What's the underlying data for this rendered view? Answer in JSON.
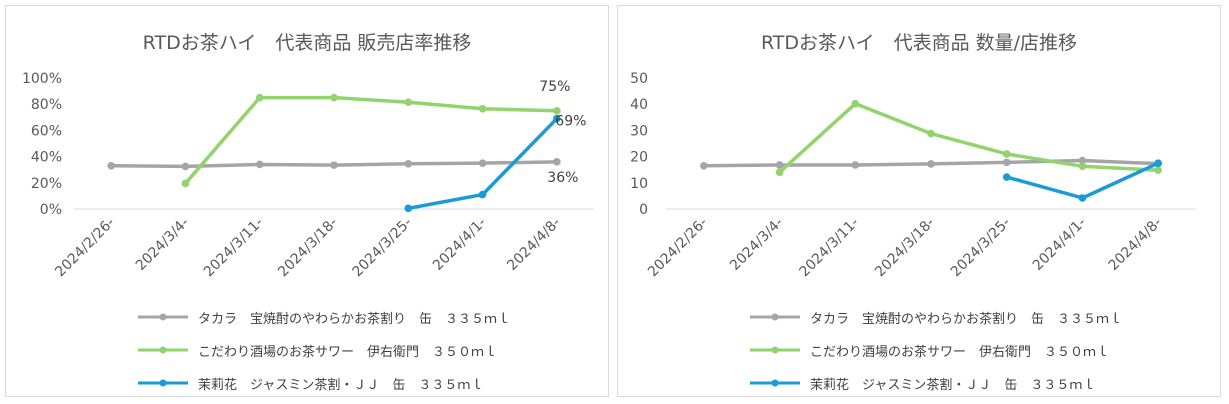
{
  "charts": [
    {
      "title": "RTDお茶ハイ　代表商品 販売店率推移",
      "chart_data": {
        "type": "line",
        "categories": [
          "2024/2/26-",
          "2024/3/4-",
          "2024/3/11-",
          "2024/3/18-",
          "2024/3/25-",
          "2024/4/1-",
          "2024/4/8-"
        ],
        "y_ticks": [
          "0%",
          "20%",
          "40%",
          "60%",
          "80%",
          "100%"
        ],
        "ylim": [
          0,
          100
        ],
        "grid": false,
        "legend_position": "bottom",
        "series": [
          {
            "name": "タカラ　宝焼酎のやわらかお茶割り　缶　３３５ｍｌ",
            "color": "#a5a5a5",
            "values": [
              33,
              32.5,
              34,
              33.5,
              34.5,
              35,
              36
            ],
            "end_label": "36%"
          },
          {
            "name": "こだわり酒場のお茶サワー　伊右衛門　３５０ｍｌ",
            "color": "#92d36e",
            "values": [
              null,
              19.5,
              85,
              85,
              81.5,
              76.5,
              75
            ],
            "end_label": "75%"
          },
          {
            "name": "茉莉花　ジャスミン茶割・ＪＪ　缶　３３５ｍｌ",
            "color": "#1a9bd7",
            "values": [
              null,
              null,
              null,
              null,
              0.5,
              11,
              69
            ],
            "end_label": "69%"
          }
        ]
      }
    },
    {
      "title": "RTDお茶ハイ　代表商品 数量/店推移",
      "chart_data": {
        "type": "line",
        "categories": [
          "2024/2/26-",
          "2024/3/4-",
          "2024/3/11-",
          "2024/3/18-",
          "2024/3/25-",
          "2024/4/1-",
          "2024/4/8-"
        ],
        "y_ticks": [
          "0",
          "10",
          "20",
          "30",
          "40",
          "50"
        ],
        "ylim": [
          0,
          50
        ],
        "grid": false,
        "legend_position": "bottom",
        "series": [
          {
            "name": "タカラ　宝焼酎のやわらかお茶割り　缶　３３５ｍｌ",
            "color": "#a5a5a5",
            "values": [
              16.5,
              16.8,
              16.8,
              17.2,
              17.8,
              18.5,
              17.3
            ]
          },
          {
            "name": "こだわり酒場のお茶サワー　伊右衛門　３５０ｍｌ",
            "color": "#92d36e",
            "values": [
              null,
              14,
              40.2,
              28.8,
              21,
              16.3,
              14.8
            ]
          },
          {
            "name": "茉莉花　ジャスミン茶割・ＪＪ　缶　３３５ｍｌ",
            "color": "#1a9bd7",
            "values": [
              null,
              null,
              null,
              null,
              12.2,
              4.2,
              17.5
            ]
          }
        ]
      }
    }
  ]
}
